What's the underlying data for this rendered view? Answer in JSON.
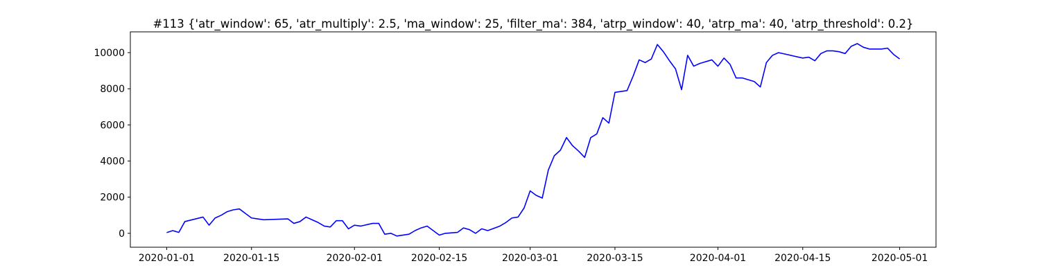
{
  "chart_data": {
    "type": "line",
    "title": "#113 {'atr_window': 65, 'atr_multiply': 2.5, 'ma_window': 25, 'filter_ma': 384, 'atrp_window': 40, 'atrp_ma': 40, 'atrp_threshold': 0.2}",
    "x": [
      "2020-01-01",
      "2020-01-02",
      "2020-01-03",
      "2020-01-04",
      "2020-01-07",
      "2020-01-08",
      "2020-01-09",
      "2020-01-10",
      "2020-01-11",
      "2020-01-12",
      "2020-01-13",
      "2020-01-14",
      "2020-01-15",
      "2020-01-16",
      "2020-01-17",
      "2020-01-21",
      "2020-01-22",
      "2020-01-23",
      "2020-01-24",
      "2020-01-25",
      "2020-01-26",
      "2020-01-27",
      "2020-01-28",
      "2020-01-29",
      "2020-01-30",
      "2020-01-31",
      "2020-02-01",
      "2020-02-02",
      "2020-02-04",
      "2020-02-05",
      "2020-02-06",
      "2020-02-07",
      "2020-02-08",
      "2020-02-10",
      "2020-02-11",
      "2020-02-12",
      "2020-02-13",
      "2020-02-14",
      "2020-02-15",
      "2020-02-16",
      "2020-02-18",
      "2020-02-19",
      "2020-02-20",
      "2020-02-21",
      "2020-02-22",
      "2020-02-23",
      "2020-02-25",
      "2020-02-26",
      "2020-02-27",
      "2020-02-28",
      "2020-02-29",
      "2020-03-01",
      "2020-03-02",
      "2020-03-03",
      "2020-03-04",
      "2020-03-05",
      "2020-03-06",
      "2020-03-07",
      "2020-03-08",
      "2020-03-09",
      "2020-03-10",
      "2020-03-11",
      "2020-03-12",
      "2020-03-13",
      "2020-03-14",
      "2020-03-15",
      "2020-03-16",
      "2020-03-17",
      "2020-03-18",
      "2020-03-19",
      "2020-03-20",
      "2020-03-21",
      "2020-03-22",
      "2020-03-23",
      "2020-03-24",
      "2020-03-25",
      "2020-03-26",
      "2020-03-27",
      "2020-03-28",
      "2020-03-29",
      "2020-03-31",
      "2020-04-01",
      "2020-04-02",
      "2020-04-03",
      "2020-04-04",
      "2020-04-05",
      "2020-04-06",
      "2020-04-07",
      "2020-04-08",
      "2020-04-09",
      "2020-04-10",
      "2020-04-11",
      "2020-04-15",
      "2020-04-16",
      "2020-04-17",
      "2020-04-18",
      "2020-04-19",
      "2020-04-20",
      "2020-04-21",
      "2020-04-22",
      "2020-04-23",
      "2020-04-24",
      "2020-04-25",
      "2020-04-26",
      "2020-04-28",
      "2020-04-29",
      "2020-04-30",
      "2020-05-01"
    ],
    "series": [
      {
        "color": "#0000ff",
        "values": [
          40,
          150,
          50,
          650,
          900,
          450,
          850,
          1000,
          1200,
          1300,
          1350,
          1100,
          850,
          800,
          750,
          800,
          550,
          650,
          900,
          750,
          600,
          400,
          350,
          700,
          700,
          250,
          450,
          400,
          550,
          550,
          -50,
          0,
          -150,
          -50,
          150,
          300,
          400,
          150,
          -100,
          0,
          50,
          300,
          200,
          0,
          250,
          150,
          400,
          600,
          850,
          900,
          1400,
          2350,
          2100,
          1950,
          3500,
          4300,
          4600,
          5300,
          4850,
          4550,
          4200,
          5300,
          5500,
          6400,
          6100,
          7800,
          7850,
          7900,
          8700,
          9600,
          9450,
          9650,
          10450,
          10050,
          9550,
          9100,
          7950,
          9850,
          9250,
          9400,
          9600,
          9250,
          9700,
          9350,
          8600,
          8600,
          8500,
          8400,
          8100,
          9450,
          9850,
          10000,
          9700,
          9750,
          9550,
          9950,
          10100,
          10100,
          10050,
          9950,
          10350,
          10500,
          10300,
          10200,
          10200,
          10250,
          9900,
          9650
        ]
      }
    ],
    "xlim": [
      "2019-12-26",
      "2020-05-07"
    ],
    "xticks": [
      "2020-01-01",
      "2020-01-15",
      "2020-02-01",
      "2020-02-15",
      "2020-03-01",
      "2020-03-15",
      "2020-04-01",
      "2020-04-15",
      "2020-05-01"
    ],
    "ylim": [
      -770,
      11150
    ],
    "yticks": [
      0,
      2000,
      4000,
      6000,
      8000,
      10000
    ],
    "grid": false
  }
}
